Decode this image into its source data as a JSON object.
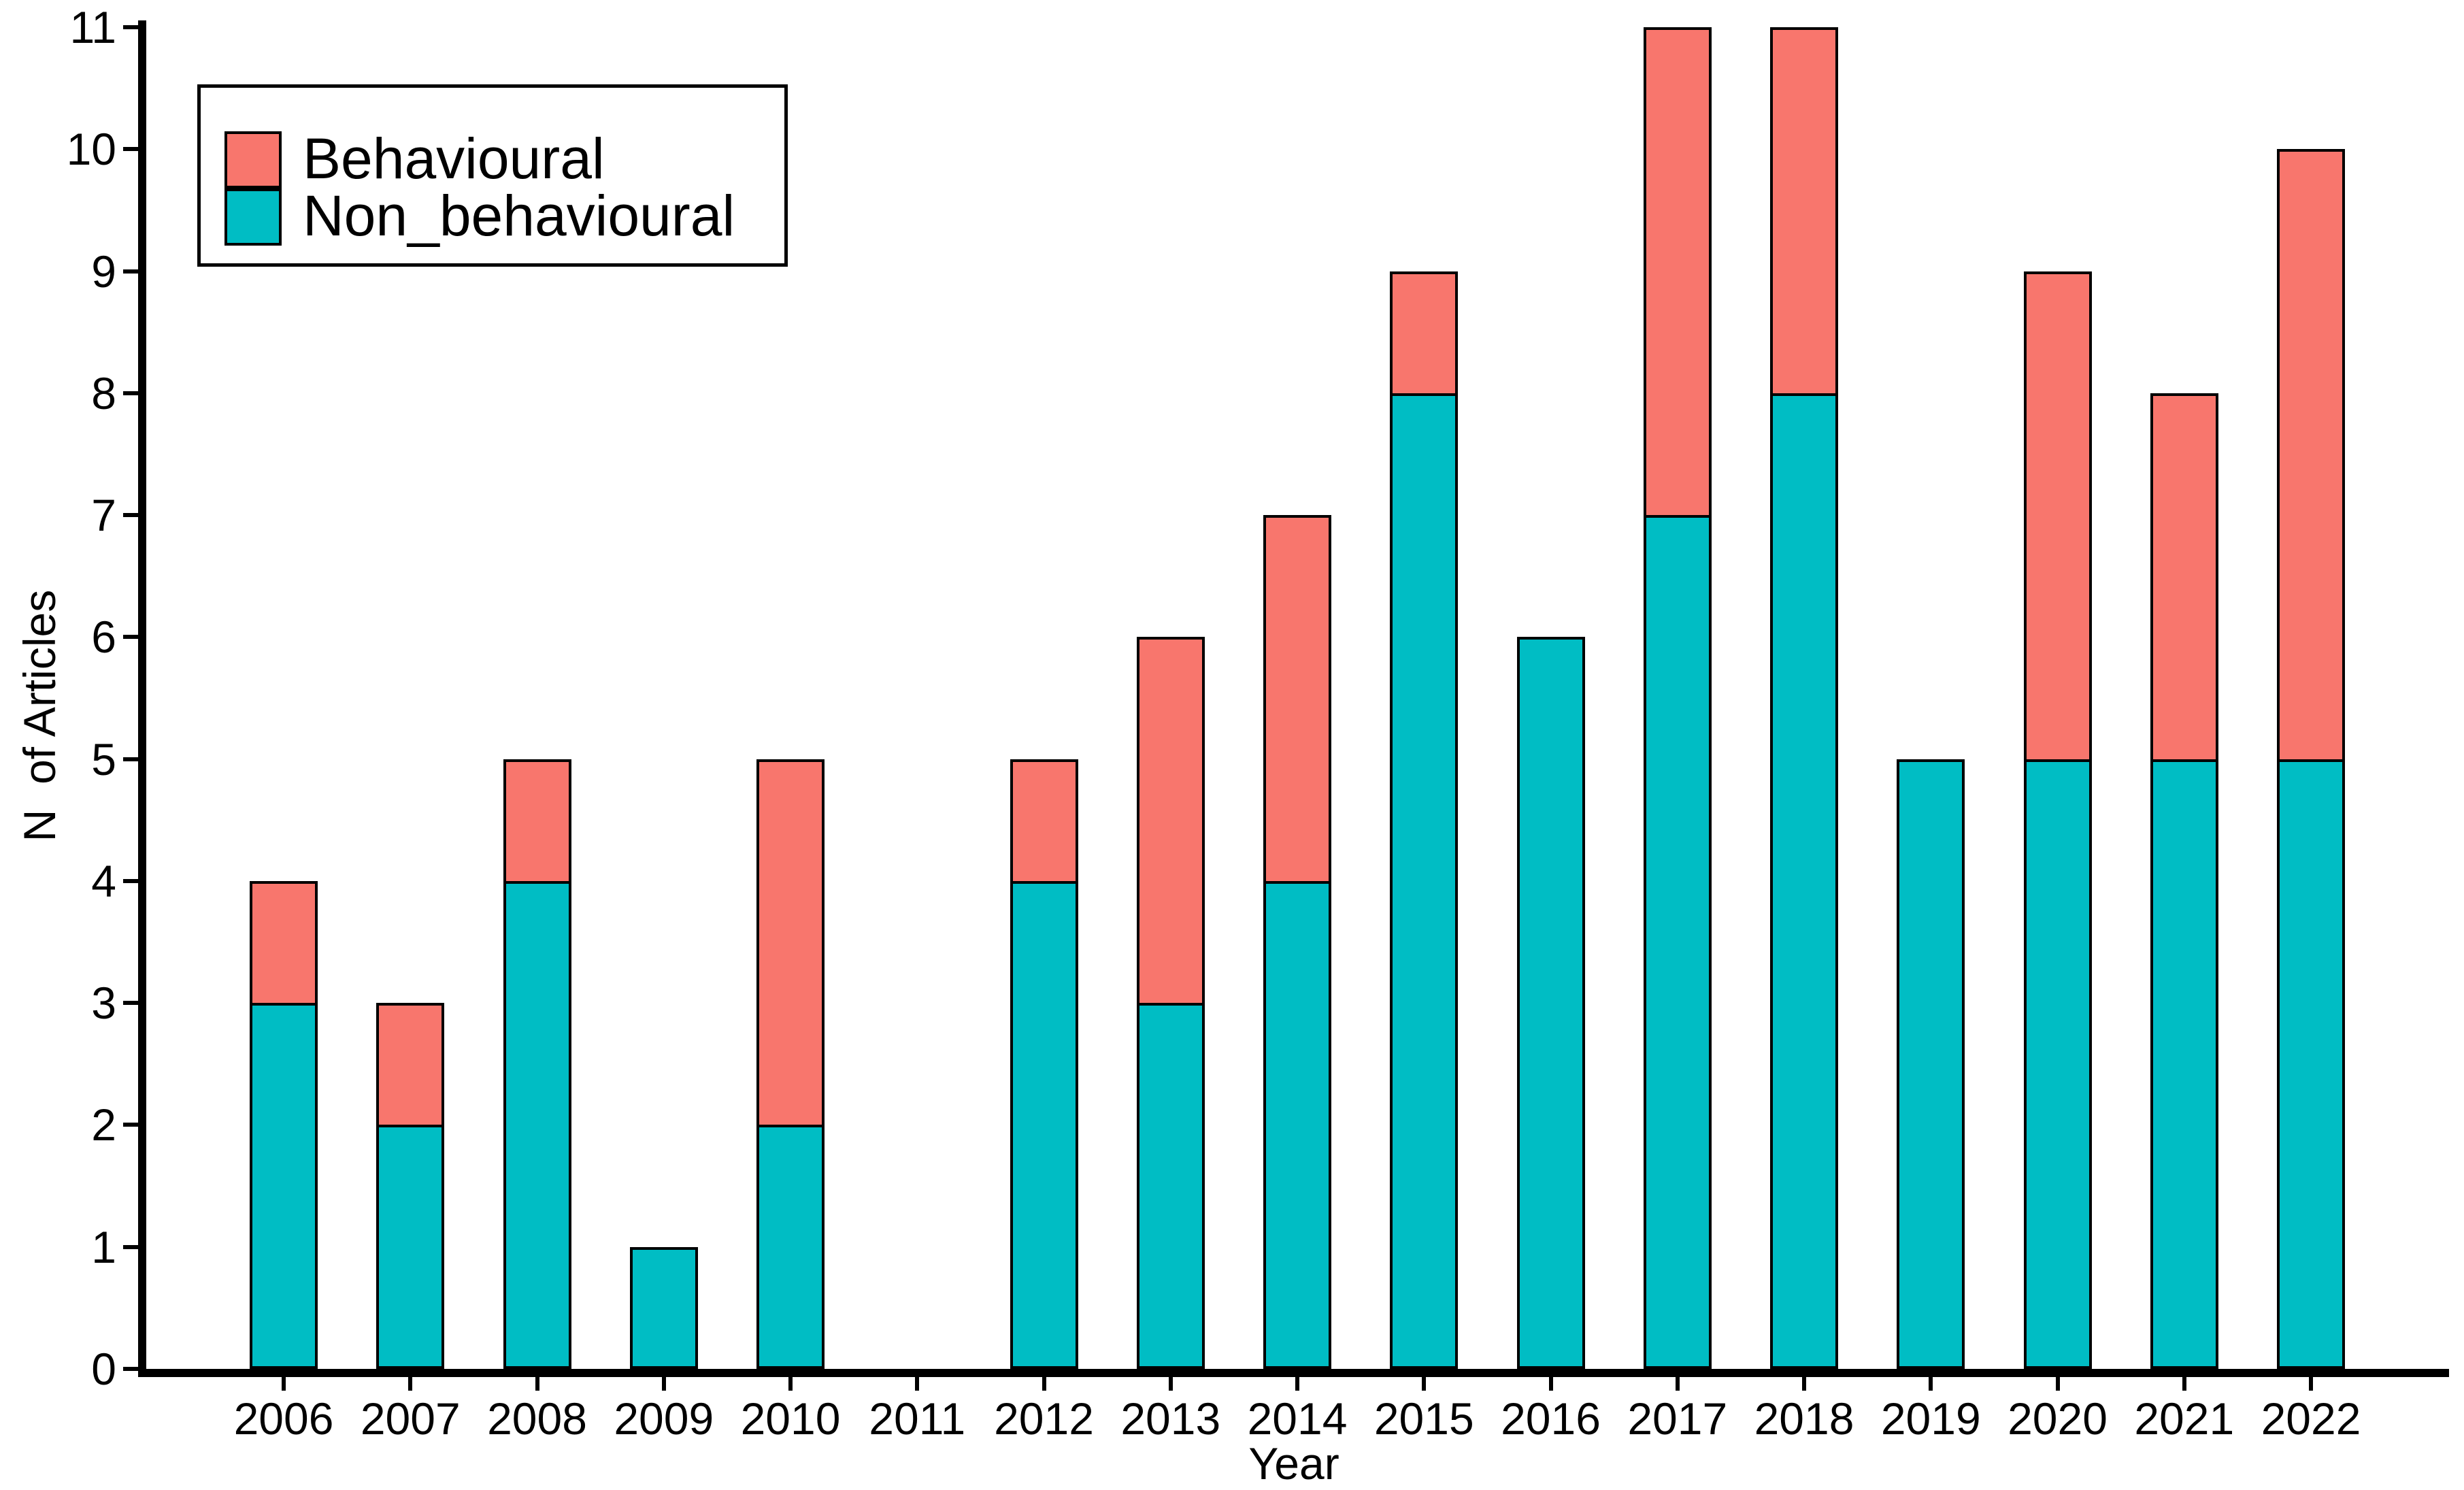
{
  "figure": {
    "background": "#ffffff",
    "axis_color": "#000000",
    "bar_outline": "#000000"
  },
  "chart_data": {
    "type": "bar",
    "stacked": true,
    "xlabel": "Year",
    "ylabel": "N  of Articles",
    "ylim": [
      0,
      11
    ],
    "grid": false,
    "y_ticks": [
      "0",
      "1",
      "2",
      "3",
      "4",
      "5",
      "6",
      "7",
      "8",
      "9",
      "10",
      "11"
    ],
    "categories": [
      "2006",
      "2007",
      "2008",
      "2009",
      "2010",
      "2011",
      "2012",
      "2013",
      "2014",
      "2015",
      "2016",
      "2017",
      "2018",
      "2019",
      "2020",
      "2021",
      "2022"
    ],
    "series": [
      {
        "name": "Non_behavioural",
        "color": "#00BDC4",
        "values": [
          3,
          2,
          4,
          1,
          2,
          0,
          4,
          3,
          4,
          8,
          6,
          7,
          8,
          5,
          5,
          5,
          5
        ]
      },
      {
        "name": "Behavioural",
        "color": "#F8766D",
        "values": [
          1,
          1,
          1,
          0,
          3,
          0,
          1,
          3,
          3,
          1,
          0,
          4,
          3,
          0,
          4,
          3,
          5
        ]
      }
    ],
    "totals": [
      4,
      3,
      5,
      1,
      5,
      0,
      5,
      6,
      7,
      9,
      6,
      11,
      11,
      5,
      9,
      8,
      10
    ],
    "legend": {
      "position": "top-left",
      "items": [
        {
          "label": "Behavioural",
          "color": "#F8766D"
        },
        {
          "label": "Non_behavioural",
          "color": "#00BDC4"
        }
      ]
    }
  }
}
